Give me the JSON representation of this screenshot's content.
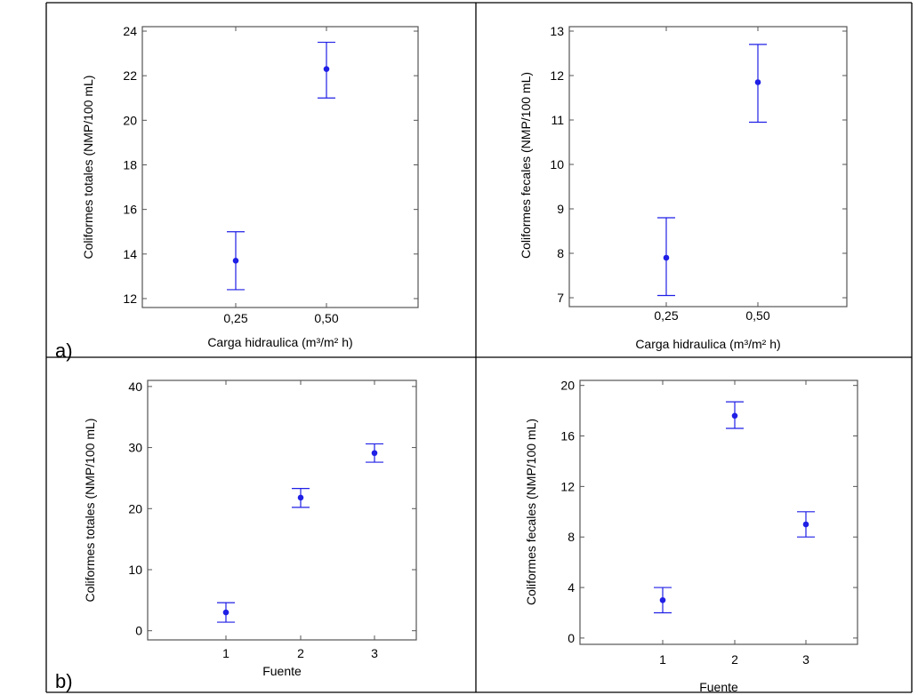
{
  "panel_labels": {
    "a": "a)",
    "b": "b)"
  },
  "chart_data": [
    {
      "id": "a-left",
      "type": "scatter",
      "error_bars": true,
      "categories": [
        "0,25",
        "0,50"
      ],
      "points": [
        {
          "category": "0,25",
          "mean": 13.7,
          "lower": 12.4,
          "upper": 15.0
        },
        {
          "category": "0,50",
          "mean": 22.3,
          "lower": 21.0,
          "upper": 23.5
        }
      ],
      "xlabel": "Carga hidraulica (m³/m² h)",
      "ylabel": "Coliformes totales (NMP/100 mL)",
      "ylim": [
        11.6,
        24.2
      ],
      "yticks": [
        12,
        14,
        16,
        18,
        20,
        22,
        24
      ],
      "marker_color": "#1f1fe6",
      "grid": false
    },
    {
      "id": "a-right",
      "type": "scatter",
      "error_bars": true,
      "categories": [
        "0,25",
        "0,50"
      ],
      "points": [
        {
          "category": "0,25",
          "mean": 7.9,
          "lower": 7.05,
          "upper": 8.8
        },
        {
          "category": "0,50",
          "mean": 11.85,
          "lower": 10.95,
          "upper": 12.7
        }
      ],
      "xlabel": "Carga hidraulica (m³/m² h)",
      "ylabel": "Coliformes fecales (NMP/100 mL)",
      "ylim": [
        6.8,
        13.1
      ],
      "yticks": [
        7,
        8,
        9,
        10,
        11,
        12,
        13
      ],
      "marker_color": "#1f1fe6",
      "grid": false
    },
    {
      "id": "b-left",
      "type": "scatter",
      "error_bars": true,
      "categories": [
        "1",
        "2",
        "3"
      ],
      "points": [
        {
          "category": "1",
          "mean": 3.0,
          "lower": 1.4,
          "upper": 4.6
        },
        {
          "category": "2",
          "mean": 21.8,
          "lower": 20.2,
          "upper": 23.3
        },
        {
          "category": "3",
          "mean": 29.1,
          "lower": 27.6,
          "upper": 30.6
        }
      ],
      "xlabel": "Fuente",
      "ylabel": "Coliformes totales (NMP/100 mL)",
      "ylim": [
        -1.5,
        41
      ],
      "yticks": [
        0,
        10,
        20,
        30,
        40
      ],
      "marker_color": "#1f1fe6",
      "grid": false
    },
    {
      "id": "b-right",
      "type": "scatter",
      "error_bars": true,
      "categories": [
        "1",
        "2",
        "3"
      ],
      "points": [
        {
          "category": "1",
          "mean": 3.0,
          "lower": 2.0,
          "upper": 4.0
        },
        {
          "category": "2",
          "mean": 17.6,
          "lower": 16.6,
          "upper": 18.7
        },
        {
          "category": "3",
          "mean": 9.0,
          "lower": 8.0,
          "upper": 10.0
        }
      ],
      "xlabel": "Fuente",
      "ylabel": "Coliformes fecales (NMP/100 mL)",
      "ylim": [
        -0.5,
        20.4
      ],
      "yticks": [
        0,
        4,
        8,
        12,
        16,
        20
      ],
      "marker_color": "#1f1fe6",
      "grid": false
    }
  ]
}
